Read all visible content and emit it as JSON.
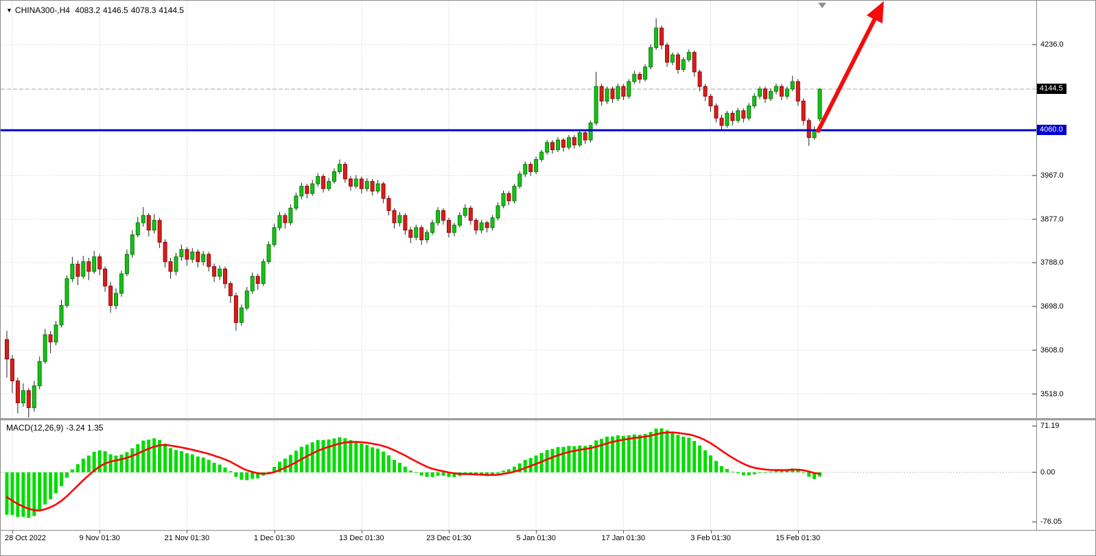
{
  "header": {
    "collapse_icon": "▼",
    "symbol_timeframe": "CHINA300-,H4",
    "open": "4083.2",
    "high": "4146.5",
    "low": "4078.3",
    "close": "4144.5"
  },
  "macd_panel": {
    "name": "MACD(12,26,9)",
    "values": "-3.24 1.35"
  },
  "chart_data": [
    {
      "type": "candlestick",
      "symbol": "CHINA300-",
      "timeframe": "H4",
      "current_ohlc": {
        "open": 4083.2,
        "high": 4146.5,
        "low": 4078.3,
        "close": 4144.5
      },
      "ylim": [
        3470,
        4315
      ],
      "y_ticks": [
        4236.0,
        3967.0,
        3877.0,
        3788.0,
        3698.0,
        3608.0,
        3518.0
      ],
      "bid_line": 4144.5,
      "support_line": 4060.0,
      "x_labels": [
        {
          "label": "28 Oct 2022",
          "index": 1
        },
        {
          "label": "9 Nov 01:30",
          "index": 17
        },
        {
          "label": "21 Nov 01:30",
          "index": 33
        },
        {
          "label": "1 Dec 01:30",
          "index": 49
        },
        {
          "label": "13 Dec 01:30",
          "index": 65
        },
        {
          "label": "23 Dec 01:30",
          "index": 81
        },
        {
          "label": "5 Jan 01:30",
          "index": 97
        },
        {
          "label": "17 Jan 01:30",
          "index": 113
        },
        {
          "label": "3 Feb 01:30",
          "index": 129
        },
        {
          "label": "15 Feb 01:30",
          "index": 145
        }
      ],
      "colors": {
        "up": "#17c117",
        "up_edge": "#067d06",
        "down": "#dd1c1c",
        "down_edge": "#8e0808",
        "wick": "#222222",
        "support": "#0000cd",
        "bid_dash": "#a6a6a6",
        "arrow": "#f20d0d",
        "grid": "#c9c9c9"
      },
      "annotations": [
        {
          "type": "arrow",
          "direction": "up-right",
          "color": "#f20d0d",
          "note": "red breakout arrow from last candle to top right"
        }
      ],
      "candles": [
        [
          3630,
          3648,
          3552,
          3590
        ],
        [
          3590,
          3598,
          3520,
          3545
        ],
        [
          3545,
          3552,
          3478,
          3500
        ],
        [
          3500,
          3540,
          3492,
          3525
        ],
        [
          3525,
          3530,
          3470,
          3490
        ],
        [
          3490,
          3545,
          3482,
          3535
        ],
        [
          3535,
          3595,
          3528,
          3585
        ],
        [
          3585,
          3652,
          3580,
          3640
        ],
        [
          3640,
          3648,
          3602,
          3625
        ],
        [
          3625,
          3668,
          3618,
          3660
        ],
        [
          3660,
          3712,
          3655,
          3700
        ],
        [
          3700,
          3762,
          3695,
          3755
        ],
        [
          3755,
          3800,
          3748,
          3785
        ],
        [
          3785,
          3792,
          3742,
          3760
        ],
        [
          3760,
          3802,
          3755,
          3790
        ],
        [
          3790,
          3798,
          3752,
          3770
        ],
        [
          3770,
          3812,
          3765,
          3800
        ],
        [
          3800,
          3806,
          3762,
          3775
        ],
        [
          3775,
          3780,
          3728,
          3740
        ],
        [
          3740,
          3748,
          3685,
          3700
        ],
        [
          3700,
          3735,
          3692,
          3725
        ],
        [
          3725,
          3772,
          3718,
          3765
        ],
        [
          3765,
          3815,
          3760,
          3805
        ],
        [
          3805,
          3855,
          3798,
          3845
        ],
        [
          3845,
          3882,
          3840,
          3870
        ],
        [
          3870,
          3902,
          3862,
          3885
        ],
        [
          3885,
          3890,
          3842,
          3855
        ],
        [
          3855,
          3888,
          3848,
          3875
        ],
        [
          3875,
          3880,
          3818,
          3830
        ],
        [
          3830,
          3836,
          3778,
          3790
        ],
        [
          3790,
          3798,
          3755,
          3770
        ],
        [
          3770,
          3808,
          3762,
          3800
        ],
        [
          3800,
          3825,
          3792,
          3815
        ],
        [
          3815,
          3820,
          3782,
          3795
        ],
        [
          3795,
          3818,
          3788,
          3810
        ],
        [
          3810,
          3815,
          3778,
          3790
        ],
        [
          3790,
          3812,
          3782,
          3805
        ],
        [
          3805,
          3810,
          3770,
          3780
        ],
        [
          3780,
          3786,
          3748,
          3760
        ],
        [
          3760,
          3782,
          3752,
          3775
        ],
        [
          3775,
          3780,
          3735,
          3745
        ],
        [
          3745,
          3750,
          3705,
          3720
        ],
        [
          3720,
          3726,
          3648,
          3665
        ],
        [
          3665,
          3702,
          3658,
          3695
        ],
        [
          3695,
          3738,
          3690,
          3730
        ],
        [
          3730,
          3768,
          3724,
          3760
        ],
        [
          3760,
          3765,
          3732,
          3745
        ],
        [
          3745,
          3796,
          3740,
          3790
        ],
        [
          3790,
          3832,
          3785,
          3825
        ],
        [
          3825,
          3868,
          3820,
          3860
        ],
        [
          3860,
          3892,
          3854,
          3885
        ],
        [
          3885,
          3890,
          3858,
          3870
        ],
        [
          3870,
          3908,
          3865,
          3900
        ],
        [
          3900,
          3932,
          3895,
          3925
        ],
        [
          3925,
          3952,
          3918,
          3945
        ],
        [
          3945,
          3950,
          3920,
          3930
        ],
        [
          3930,
          3958,
          3925,
          3950
        ],
        [
          3950,
          3972,
          3944,
          3965
        ],
        [
          3965,
          3970,
          3932,
          3940
        ],
        [
          3940,
          3962,
          3935,
          3955
        ],
        [
          3955,
          3982,
          3950,
          3975
        ],
        [
          3975,
          4000,
          3970,
          3990
        ],
        [
          3990,
          3995,
          3952,
          3960
        ],
        [
          3960,
          3966,
          3936,
          3945
        ],
        [
          3945,
          3968,
          3940,
          3960
        ],
        [
          3960,
          3965,
          3930,
          3940
        ],
        [
          3940,
          3962,
          3934,
          3955
        ],
        [
          3955,
          3960,
          3926,
          3935
        ],
        [
          3935,
          3958,
          3930,
          3950
        ],
        [
          3950,
          3954,
          3910,
          3920
        ],
        [
          3920,
          3926,
          3885,
          3895
        ],
        [
          3895,
          3900,
          3858,
          3870
        ],
        [
          3870,
          3892,
          3862,
          3885
        ],
        [
          3885,
          3890,
          3845,
          3855
        ],
        [
          3855,
          3862,
          3828,
          3840
        ],
        [
          3840,
          3866,
          3834,
          3860
        ],
        [
          3860,
          3865,
          3825,
          3835
        ],
        [
          3835,
          3856,
          3828,
          3850
        ],
        [
          3850,
          3876,
          3845,
          3870
        ],
        [
          3870,
          3902,
          3864,
          3895
        ],
        [
          3895,
          3900,
          3866,
          3875
        ],
        [
          3875,
          3880,
          3840,
          3850
        ],
        [
          3850,
          3870,
          3842,
          3865
        ],
        [
          3865,
          3892,
          3860,
          3885
        ],
        [
          3885,
          3908,
          3880,
          3900
        ],
        [
          3900,
          3905,
          3866,
          3875
        ],
        [
          3875,
          3880,
          3846,
          3855
        ],
        [
          3855,
          3876,
          3848,
          3870
        ],
        [
          3870,
          3874,
          3850,
          3860
        ],
        [
          3860,
          3886,
          3854,
          3880
        ],
        [
          3880,
          3912,
          3875,
          3905
        ],
        [
          3905,
          3936,
          3900,
          3930
        ],
        [
          3930,
          3935,
          3906,
          3915
        ],
        [
          3915,
          3950,
          3910,
          3945
        ],
        [
          3945,
          3976,
          3940,
          3970
        ],
        [
          3970,
          3996,
          3964,
          3990
        ],
        [
          3990,
          3995,
          3966,
          3975
        ],
        [
          3975,
          4006,
          3970,
          4000
        ],
        [
          4000,
          4020,
          3995,
          4015
        ],
        [
          4015,
          4040,
          4010,
          4035
        ],
        [
          4035,
          4040,
          4012,
          4020
        ],
        [
          4020,
          4046,
          4015,
          4040
        ],
        [
          4040,
          4044,
          4016,
          4025
        ],
        [
          4025,
          4050,
          4020,
          4045
        ],
        [
          4045,
          4050,
          4022,
          4030
        ],
        [
          4030,
          4060,
          4025,
          4055
        ],
        [
          4055,
          4058,
          4032,
          4040
        ],
        [
          4040,
          4080,
          4035,
          4075
        ],
        [
          4075,
          4180,
          4070,
          4150
        ],
        [
          4150,
          4155,
          4110,
          4120
        ],
        [
          4120,
          4150,
          4114,
          4145
        ],
        [
          4145,
          4150,
          4116,
          4125
        ],
        [
          4125,
          4156,
          4120,
          4150
        ],
        [
          4150,
          4155,
          4122,
          4130
        ],
        [
          4130,
          4165,
          4125,
          4160
        ],
        [
          4160,
          4182,
          4155,
          4175
        ],
        [
          4175,
          4180,
          4156,
          4165
        ],
        [
          4165,
          4196,
          4160,
          4190
        ],
        [
          4190,
          4236,
          4185,
          4230
        ],
        [
          4230,
          4290,
          4225,
          4270
        ],
        [
          4270,
          4275,
          4226,
          4235
        ],
        [
          4235,
          4240,
          4190,
          4200
        ],
        [
          4200,
          4220,
          4194,
          4215
        ],
        [
          4215,
          4220,
          4176,
          4185
        ],
        [
          4185,
          4210,
          4180,
          4205
        ],
        [
          4205,
          4226,
          4200,
          4220
        ],
        [
          4220,
          4224,
          4170,
          4180
        ],
        [
          4180,
          4185,
          4140,
          4150
        ],
        [
          4150,
          4155,
          4120,
          4130
        ],
        [
          4130,
          4135,
          4098,
          4110
        ],
        [
          4110,
          4115,
          4076,
          4085
        ],
        [
          4085,
          4092,
          4058,
          4070
        ],
        [
          4070,
          4100,
          4065,
          4095
        ],
        [
          4095,
          4100,
          4070,
          4080
        ],
        [
          4080,
          4106,
          4075,
          4100
        ],
        [
          4100,
          4105,
          4076,
          4085
        ],
        [
          4085,
          4116,
          4080,
          4110
        ],
        [
          4110,
          4136,
          4105,
          4130
        ],
        [
          4130,
          4150,
          4124,
          4145
        ],
        [
          4145,
          4150,
          4116,
          4125
        ],
        [
          4125,
          4146,
          4120,
          4140
        ],
        [
          4140,
          4156,
          4134,
          4150
        ],
        [
          4150,
          4155,
          4122,
          4130
        ],
        [
          4130,
          4150,
          4124,
          4145
        ],
        [
          4145,
          4172,
          4140,
          4160
        ],
        [
          4160,
          4165,
          4110,
          4120
        ],
        [
          4120,
          4125,
          4070,
          4080
        ],
        [
          4080,
          4085,
          4028,
          4045
        ],
        [
          4045,
          4068,
          4040,
          4060
        ],
        [
          4083.2,
          4146.5,
          4078.3,
          4144.5
        ]
      ]
    },
    {
      "type": "macd",
      "label": "MACD(12,26,9)",
      "params": {
        "fast": 12,
        "slow": 26,
        "signal": 9
      },
      "current": {
        "macd": -3.24,
        "signal": 1.35
      },
      "y_ticks": [
        71.19,
        0.0,
        -76.05
      ],
      "histogram_color": "#00dc00",
      "signal_color": "#ff0000"
    }
  ]
}
